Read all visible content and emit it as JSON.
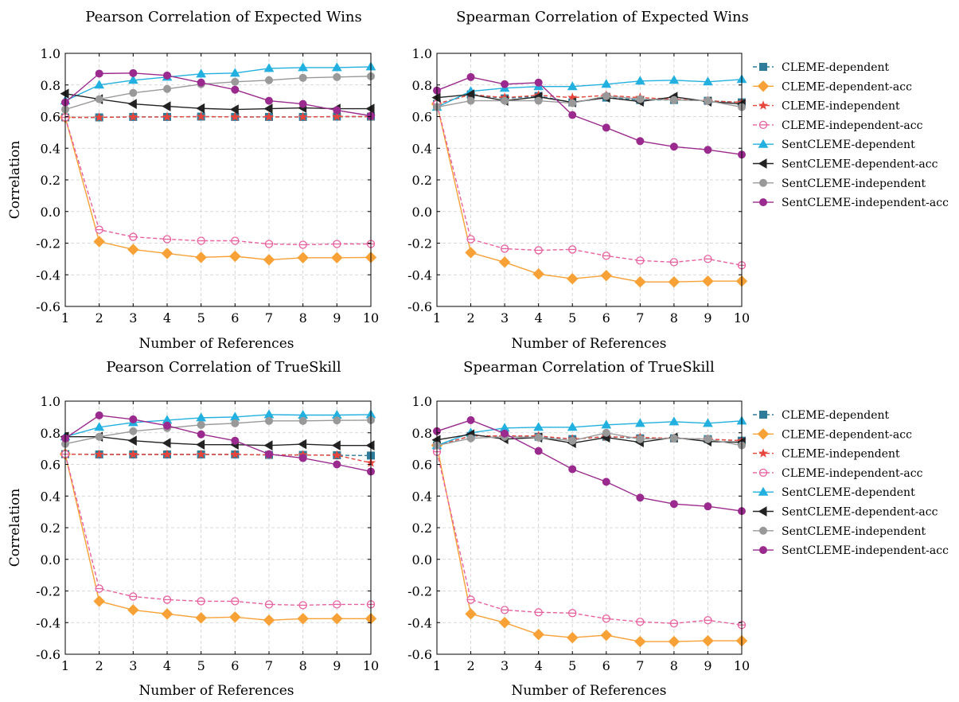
{
  "x_values": [
    1,
    2,
    3,
    4,
    5,
    6,
    7,
    8,
    9,
    10
  ],
  "series_styles": [
    {
      "name": "CLEME-dependent",
      "color": "#2e7c9a",
      "marker": "square",
      "dash": true
    },
    {
      "name": "CLEME-dependent-acc",
      "color": "#f7a136",
      "marker": "diamond",
      "dash": false
    },
    {
      "name": "CLEME-independent",
      "color": "#e8453c",
      "marker": "star",
      "dash": true
    },
    {
      "name": "CLEME-independent-acc",
      "color": "#e8609f",
      "marker": "circle-open",
      "dash": true
    },
    {
      "name": "SentCLEME-dependent",
      "color": "#22b0e0",
      "marker": "triangle",
      "dash": false
    },
    {
      "name": "SentCLEME-dependent-acc",
      "color": "#222222",
      "marker": "triangle-left",
      "dash": false
    },
    {
      "name": "SentCLEME-independent",
      "color": "#999999",
      "marker": "circle",
      "dash": false
    },
    {
      "name": "SentCLEME-independent-acc",
      "color": "#9b2a8e",
      "marker": "circle",
      "dash": false
    }
  ],
  "chart_data": [
    {
      "type": "line",
      "title": "Pearson Correlation of Expected Wins",
      "xlabel": "Number of References",
      "ylabel": "Correlation",
      "ylim": [
        -0.6,
        1.0
      ],
      "xlim": [
        1,
        10
      ],
      "x_ticks": [
        "1",
        "2",
        "3",
        "4",
        "5",
        "6",
        "7",
        "8",
        "9",
        "10"
      ],
      "y_ticks": [
        "-0.6",
        "-0.4",
        "-0.2",
        "0.0",
        "0.2",
        "0.4",
        "0.6",
        "0.8",
        "1.0"
      ],
      "grid": true,
      "legend": "",
      "x": [
        1,
        2,
        3,
        4,
        5,
        6,
        7,
        8,
        9,
        10
      ],
      "series": [
        {
          "name": "CLEME-dependent",
          "values": [
            0.595,
            0.595,
            0.598,
            0.598,
            0.6,
            0.598,
            0.598,
            0.598,
            0.6,
            0.6
          ]
        },
        {
          "name": "CLEME-dependent-acc",
          "values": [
            0.595,
            -0.19,
            -0.24,
            -0.265,
            -0.29,
            -0.283,
            -0.305,
            -0.292,
            -0.292,
            -0.29
          ]
        },
        {
          "name": "CLEME-independent",
          "values": [
            0.595,
            0.595,
            0.598,
            0.598,
            0.6,
            0.598,
            0.598,
            0.598,
            0.6,
            0.6
          ]
        },
        {
          "name": "CLEME-independent-acc",
          "values": [
            0.595,
            -0.115,
            -0.16,
            -0.175,
            -0.185,
            -0.185,
            -0.205,
            -0.21,
            -0.205,
            -0.205
          ]
        },
        {
          "name": "SentCLEME-dependent",
          "values": [
            0.7,
            0.8,
            0.83,
            0.85,
            0.87,
            0.875,
            0.905,
            0.91,
            0.91,
            0.915
          ]
        },
        {
          "name": "SentCLEME-dependent-acc",
          "values": [
            0.745,
            0.71,
            0.68,
            0.665,
            0.652,
            0.645,
            0.65,
            0.655,
            0.65,
            0.65
          ]
        },
        {
          "name": "SentCLEME-independent",
          "values": [
            0.645,
            0.71,
            0.75,
            0.775,
            0.805,
            0.82,
            0.83,
            0.845,
            0.85,
            0.855
          ]
        },
        {
          "name": "SentCLEME-independent-acc",
          "values": [
            0.69,
            0.872,
            0.875,
            0.86,
            0.815,
            0.77,
            0.7,
            0.68,
            0.64,
            0.605
          ]
        }
      ]
    },
    {
      "type": "line",
      "title": "Spearman Correlation of Expected Wins",
      "xlabel": "Number of References",
      "ylabel": "",
      "ylim": [
        -0.6,
        1.0
      ],
      "xlim": [
        1,
        10
      ],
      "x_ticks": [
        "1",
        "2",
        "3",
        "4",
        "5",
        "6",
        "7",
        "8",
        "9",
        "10"
      ],
      "y_ticks": [
        "-0.6",
        "-0.4",
        "-0.2",
        "0.0",
        "0.2",
        "0.4",
        "0.6",
        "0.8",
        "1.0"
      ],
      "grid": true,
      "legend": "right",
      "x": [
        1,
        2,
        3,
        4,
        5,
        6,
        7,
        8,
        9,
        10
      ],
      "series": [
        {
          "name": "CLEME-dependent",
          "values": [
            0.68,
            0.74,
            0.715,
            0.73,
            0.69,
            0.72,
            0.705,
            0.705,
            0.7,
            0.69
          ]
        },
        {
          "name": "CLEME-dependent-acc",
          "values": [
            0.68,
            -0.26,
            -0.32,
            -0.395,
            -0.425,
            -0.405,
            -0.445,
            -0.445,
            -0.44,
            -0.44
          ]
        },
        {
          "name": "CLEME-independent",
          "values": [
            0.68,
            0.74,
            0.72,
            0.735,
            0.72,
            0.735,
            0.72,
            0.71,
            0.7,
            0.69
          ]
        },
        {
          "name": "CLEME-independent-acc",
          "values": [
            0.68,
            -0.175,
            -0.235,
            -0.245,
            -0.24,
            -0.28,
            -0.31,
            -0.32,
            -0.3,
            -0.34
          ]
        },
        {
          "name": "SentCLEME-dependent",
          "values": [
            0.66,
            0.76,
            0.78,
            0.79,
            0.79,
            0.805,
            0.825,
            0.83,
            0.82,
            0.835
          ]
        },
        {
          "name": "SentCLEME-dependent-acc",
          "values": [
            0.72,
            0.74,
            0.7,
            0.725,
            0.69,
            0.72,
            0.695,
            0.725,
            0.695,
            0.68
          ]
        },
        {
          "name": "SentCLEME-independent",
          "values": [
            0.66,
            0.7,
            0.7,
            0.7,
            0.685,
            0.73,
            0.71,
            0.705,
            0.7,
            0.66
          ]
        },
        {
          "name": "SentCLEME-independent-acc",
          "values": [
            0.765,
            0.85,
            0.805,
            0.815,
            0.61,
            0.53,
            0.445,
            0.41,
            0.39,
            0.36
          ]
        }
      ]
    },
    {
      "type": "line",
      "title": "Pearson Correlation of TrueSkill",
      "xlabel": "Number of References",
      "ylabel": "Correlation",
      "ylim": [
        -0.6,
        1.0
      ],
      "xlim": [
        1,
        10
      ],
      "x_ticks": [
        "1",
        "2",
        "3",
        "4",
        "5",
        "6",
        "7",
        "8",
        "9",
        "10"
      ],
      "y_ticks": [
        "-0.6",
        "-0.4",
        "-0.2",
        "0.0",
        "0.2",
        "0.4",
        "0.6",
        "0.8",
        "1.0"
      ],
      "grid": true,
      "legend": "",
      "x": [
        1,
        2,
        3,
        4,
        5,
        6,
        7,
        8,
        9,
        10
      ],
      "series": [
        {
          "name": "CLEME-dependent",
          "values": [
            0.665,
            0.663,
            0.663,
            0.663,
            0.663,
            0.663,
            0.66,
            0.66,
            0.658,
            0.656
          ]
        },
        {
          "name": "CLEME-dependent-acc",
          "values": [
            0.665,
            -0.265,
            -0.32,
            -0.345,
            -0.37,
            -0.365,
            -0.385,
            -0.375,
            -0.375,
            -0.375
          ]
        },
        {
          "name": "CLEME-independent",
          "values": [
            0.665,
            0.663,
            0.663,
            0.663,
            0.663,
            0.663,
            0.66,
            0.66,
            0.658,
            0.61
          ]
        },
        {
          "name": "CLEME-independent-acc",
          "values": [
            0.665,
            -0.185,
            -0.235,
            -0.255,
            -0.265,
            -0.265,
            -0.285,
            -0.29,
            -0.285,
            -0.285
          ]
        },
        {
          "name": "SentCLEME-dependent",
          "values": [
            0.775,
            0.835,
            0.865,
            0.88,
            0.895,
            0.9,
            0.915,
            0.912,
            0.912,
            0.915
          ]
        },
        {
          "name": "SentCLEME-dependent-acc",
          "values": [
            0.775,
            0.775,
            0.75,
            0.735,
            0.725,
            0.725,
            0.72,
            0.728,
            0.72,
            0.72
          ]
        },
        {
          "name": "SentCLEME-independent",
          "values": [
            0.73,
            0.775,
            0.81,
            0.83,
            0.85,
            0.86,
            0.875,
            0.875,
            0.878,
            0.88
          ]
        },
        {
          "name": "SentCLEME-independent-acc",
          "values": [
            0.765,
            0.91,
            0.885,
            0.845,
            0.79,
            0.75,
            0.665,
            0.64,
            0.6,
            0.555
          ]
        }
      ]
    },
    {
      "type": "line",
      "title": "Spearman Correlation of TrueSkill",
      "xlabel": "Number of References",
      "ylabel": "",
      "ylim": [
        -0.6,
        1.0
      ],
      "xlim": [
        1,
        10
      ],
      "x_ticks": [
        "1",
        "2",
        "3",
        "4",
        "5",
        "6",
        "7",
        "8",
        "9",
        "10"
      ],
      "y_ticks": [
        "-0.6",
        "-0.4",
        "-0.2",
        "0.0",
        "0.2",
        "0.4",
        "0.6",
        "0.8",
        "1.0"
      ],
      "grid": true,
      "legend": "right",
      "x": [
        1,
        2,
        3,
        4,
        5,
        6,
        7,
        8,
        9,
        10
      ],
      "series": [
        {
          "name": "CLEME-dependent",
          "values": [
            0.72,
            0.78,
            0.78,
            0.775,
            0.76,
            0.775,
            0.765,
            0.765,
            0.76,
            0.75
          ]
        },
        {
          "name": "CLEME-dependent-acc",
          "values": [
            0.72,
            -0.345,
            -0.4,
            -0.475,
            -0.495,
            -0.48,
            -0.52,
            -0.52,
            -0.515,
            -0.515
          ]
        },
        {
          "name": "CLEME-independent",
          "values": [
            0.72,
            0.78,
            0.78,
            0.78,
            0.76,
            0.775,
            0.77,
            0.765,
            0.76,
            0.75
          ]
        },
        {
          "name": "CLEME-independent-acc",
          "values": [
            0.68,
            -0.255,
            -0.32,
            -0.335,
            -0.34,
            -0.375,
            -0.395,
            -0.405,
            -0.385,
            -0.415
          ]
        },
        {
          "name": "SentCLEME-dependent",
          "values": [
            0.72,
            0.8,
            0.83,
            0.835,
            0.835,
            0.85,
            0.86,
            0.87,
            0.86,
            0.875
          ]
        },
        {
          "name": "SentCLEME-dependent-acc",
          "values": [
            0.755,
            0.79,
            0.76,
            0.77,
            0.735,
            0.77,
            0.74,
            0.77,
            0.745,
            0.74
          ]
        },
        {
          "name": "SentCLEME-independent",
          "values": [
            0.72,
            0.765,
            0.775,
            0.77,
            0.75,
            0.8,
            0.76,
            0.765,
            0.76,
            0.72
          ]
        },
        {
          "name": "SentCLEME-independent-acc",
          "values": [
            0.81,
            0.88,
            0.795,
            0.685,
            0.57,
            0.49,
            0.39,
            0.35,
            0.335,
            0.305
          ]
        }
      ]
    }
  ]
}
